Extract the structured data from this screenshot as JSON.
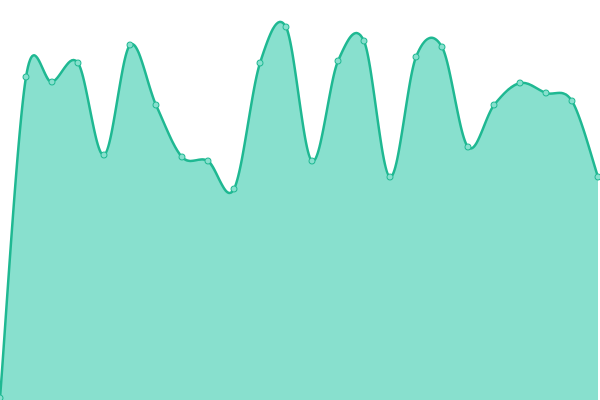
{
  "chart_data": {
    "type": "area",
    "categories": [
      null,
      null,
      null,
      null,
      null,
      null,
      null,
      null,
      null,
      null,
      null,
      null,
      null,
      null,
      null,
      null,
      null,
      null,
      null,
      null,
      null,
      null,
      null,
      null
    ],
    "values": [
      2,
      323,
      318,
      337,
      245,
      355,
      295,
      243,
      239,
      211,
      337,
      373,
      239,
      339,
      359,
      223,
      343,
      353,
      253,
      295,
      317,
      307,
      299,
      223
    ],
    "color": "#1fb892",
    "fill_color": "#88e0ce",
    "ylim": [
      0,
      400
    ]
  }
}
